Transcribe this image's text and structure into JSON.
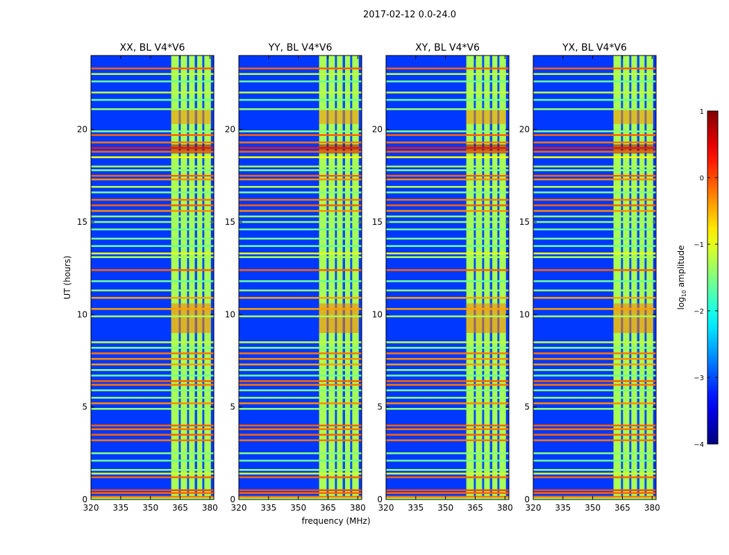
{
  "figure": {
    "suptitle": "2017-02-12 0.0-24.0",
    "xlabel": "frequency (MHz)",
    "ylabel": "UT (hours)"
  },
  "colorbar": {
    "label_prefix": "log",
    "label_sub": "10",
    "label_suffix": " amplitude",
    "range": [
      -4,
      1
    ],
    "ticks": [
      1,
      0,
      -1,
      -2,
      -3,
      -4
    ],
    "tick_labels": [
      "1",
      "0",
      "−1",
      "−2",
      "−3",
      "−4"
    ],
    "colormap": "jet"
  },
  "chart_data": {
    "type": "heatmap",
    "xlim": [
      320,
      382
    ],
    "ylim": [
      0,
      24
    ],
    "xticks": [
      320,
      335,
      350,
      365,
      380
    ],
    "yticks": [
      0,
      5,
      10,
      15,
      20
    ],
    "colorscale": "log10 amplitude",
    "background_level": -3.1,
    "panels": [
      {
        "title": "XX, BL V4*V6"
      },
      {
        "title": "YY, BL V4*V6"
      },
      {
        "title": "XY, BL V4*V6"
      },
      {
        "title": "YX, BL V4*V6"
      }
    ],
    "rfi_frequency_bands_mhz": [
      {
        "start": 360.5,
        "end": 364.3,
        "level": -1.3
      },
      {
        "start": 364.3,
        "end": 365.3,
        "level": -3.0
      },
      {
        "start": 365.3,
        "end": 368.5,
        "level": -1.3
      },
      {
        "start": 368.5,
        "end": 369.5,
        "level": -3.0
      },
      {
        "start": 369.5,
        "end": 372.4,
        "level": -1.3
      },
      {
        "start": 372.4,
        "end": 373.6,
        "level": -3.0
      },
      {
        "start": 373.6,
        "end": 376.2,
        "level": -1.3
      },
      {
        "start": 376.2,
        "end": 377.2,
        "level": -3.0
      },
      {
        "start": 377.2,
        "end": 380.5,
        "level": -1.3
      }
    ],
    "rfi_time_lines_hours": [
      {
        "t": 23.3,
        "level": -0.1
      },
      {
        "t": 23.0,
        "level": -1.2
      },
      {
        "t": 22.6,
        "level": -1.6
      },
      {
        "t": 22.0,
        "level": -1.2
      },
      {
        "t": 21.6,
        "level": -1.6
      },
      {
        "t": 21.1,
        "level": -1.4
      },
      {
        "t": 19.9,
        "level": -1.5
      },
      {
        "t": 19.7,
        "level": -0.1
      },
      {
        "t": 19.3,
        "level": -0.2
      },
      {
        "t": 19.0,
        "level": 0.3
      },
      {
        "t": 18.8,
        "level": -0.1
      },
      {
        "t": 18.5,
        "level": -0.9
      },
      {
        "t": 18.0,
        "level": -1.3
      },
      {
        "t": 17.8,
        "level": -1.5
      },
      {
        "t": 17.5,
        "level": -0.1
      },
      {
        "t": 17.3,
        "level": -0.3
      },
      {
        "t": 16.9,
        "level": -1.2
      },
      {
        "t": 16.6,
        "level": -1.5
      },
      {
        "t": 16.2,
        "level": -0.2
      },
      {
        "t": 15.9,
        "level": -0.1
      },
      {
        "t": 15.6,
        "level": -0.3
      },
      {
        "t": 15.3,
        "level": -1.4
      },
      {
        "t": 15.0,
        "level": -1.4
      },
      {
        "t": 14.6,
        "level": -1.6
      },
      {
        "t": 14.1,
        "level": -1.5
      },
      {
        "t": 13.7,
        "level": -1.6
      },
      {
        "t": 13.3,
        "level": -1.0
      },
      {
        "t": 13.1,
        "level": -1.3
      },
      {
        "t": 12.4,
        "level": -0.1
      },
      {
        "t": 11.8,
        "level": -1.6
      },
      {
        "t": 11.3,
        "level": -1.4
      },
      {
        "t": 10.9,
        "level": -0.4
      },
      {
        "t": 10.3,
        "level": -0.4
      },
      {
        "t": 9.9,
        "level": -1.3
      },
      {
        "t": 8.5,
        "level": -1.2
      },
      {
        "t": 8.2,
        "level": -1.5
      },
      {
        "t": 7.9,
        "level": -0.2
      },
      {
        "t": 7.6,
        "level": -0.3
      },
      {
        "t": 7.3,
        "level": -0.4
      },
      {
        "t": 7.0,
        "level": -1.4
      },
      {
        "t": 6.7,
        "level": -1.6
      },
      {
        "t": 6.4,
        "level": -0.1
      },
      {
        "t": 6.2,
        "level": -0.2
      },
      {
        "t": 5.9,
        "level": -1.5
      },
      {
        "t": 5.5,
        "level": -1.4
      },
      {
        "t": 5.2,
        "level": -0.3
      },
      {
        "t": 4.9,
        "level": -1.4
      },
      {
        "t": 4.0,
        "level": -0.1
      },
      {
        "t": 3.8,
        "level": -0.2
      },
      {
        "t": 3.5,
        "level": -0.1
      },
      {
        "t": 3.2,
        "level": -0.2
      },
      {
        "t": 2.5,
        "level": -1.5
      },
      {
        "t": 2.1,
        "level": -1.6
      },
      {
        "t": 1.6,
        "level": -1.4
      },
      {
        "t": 1.4,
        "level": -1.1
      },
      {
        "t": 1.2,
        "level": -0.1
      },
      {
        "t": 0.5,
        "level": 0.0
      },
      {
        "t": 0.35,
        "level": -0.1
      },
      {
        "t": 0.15,
        "level": -0.2
      },
      {
        "t": 0.05,
        "level": -1.3
      }
    ],
    "hot_spots": [
      {
        "t_start": 18.7,
        "t_end": 19.2,
        "level": 0.9
      },
      {
        "t_start": 9.0,
        "t_end": 10.6,
        "level": -0.2
      },
      {
        "t_start": 20.3,
        "t_end": 21.1,
        "level": -0.3
      }
    ]
  }
}
